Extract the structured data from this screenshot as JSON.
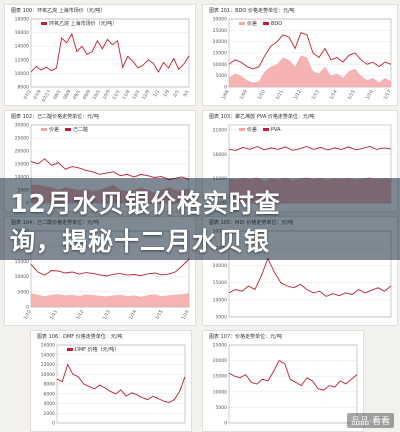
{
  "banner": {
    "line1": "12月水贝银价格实时查",
    "line2": "询，揭秘十二月水贝银"
  },
  "watermark": "品品·看看",
  "chart_data": [
    {
      "type": "line",
      "caption": "图表 100：环氧乙烷 上海市场价（元/吨）",
      "legend": [
        "环氧乙烷 上海市场价（元/吨）"
      ],
      "series": [
        {
          "name": "环氧乙烷 上海市场价（元/吨）",
          "color": "#c21f2d",
          "values": [
            10200,
            11000,
            10500,
            10900,
            10400,
            10800,
            15200,
            14500,
            15800,
            13200,
            14000,
            12800,
            13200,
            14800,
            13600,
            15000,
            14200,
            14800,
            10900,
            12500,
            11800,
            10800,
            11200,
            12000,
            11500,
            10200,
            11600,
            10800,
            12200,
            10600,
            11400,
            12600
          ]
        }
      ],
      "ylim": [
        8000,
        18000
      ],
      "yticks": [
        8000,
        10000,
        12000,
        14000,
        16000,
        18000
      ],
      "xticks": [
        "07/1",
        "07/9",
        "07/17",
        "08/1",
        "08/9",
        "09/1",
        "09/9",
        "10/1",
        "10/9",
        "11/1",
        "11/9",
        "12/1",
        "12/9",
        "1/1",
        "1/9",
        "2/1",
        "3/1"
      ]
    },
    {
      "type": "area",
      "caption": "图表 101：BDO 价格走势单位：元/吨",
      "legend": [
        "价差",
        "BDO"
      ],
      "series": [
        {
          "name": "价差",
          "color": "#f3a6a6",
          "fill": true,
          "values": [
            4000,
            6000,
            5000,
            3000,
            2000,
            2500,
            7000,
            9000,
            10000,
            13000,
            12000,
            9000,
            14000,
            13000,
            7000,
            6000,
            9000,
            5000,
            6000,
            4000,
            7000,
            8000,
            5000,
            3000,
            4000,
            2000,
            4000,
            2500
          ]
        },
        {
          "name": "BDO",
          "color": "#c21f2d",
          "values": [
            10000,
            12000,
            11000,
            9000,
            8000,
            9000,
            14000,
            18000,
            20000,
            23000,
            22000,
            17000,
            24000,
            23000,
            15000,
            13000,
            17000,
            12000,
            13000,
            11000,
            14000,
            15000,
            12000,
            10000,
            11000,
            9000,
            11000,
            10000
          ]
        }
      ],
      "ylim": [
        0,
        30000
      ],
      "yticks": [
        0,
        5000,
        10000,
        15000,
        20000,
        25000,
        30000
      ],
      "xticks": [
        "1/08",
        "1/09",
        "1/10",
        "1/11",
        "1/12",
        "1/13",
        "1/14",
        "1/15",
        "1/16",
        "1/17"
      ]
    },
    {
      "type": "area",
      "caption": "图表 102：己二酸价格走势单位：元/吨",
      "legend": [
        "价差",
        "己二酸"
      ],
      "series": [
        {
          "name": "价差",
          "color": "#f3a6a6",
          "fill": true,
          "values": [
            7000,
            7000,
            6500,
            6000,
            5000,
            6000,
            5500,
            5000,
            5500,
            4500,
            5000,
            6000,
            7000,
            5000,
            4500,
            5000,
            6000,
            5000,
            4000,
            5000,
            6000,
            5000,
            4500,
            6000
          ]
        },
        {
          "name": "己二酸",
          "color": "#c21f2d",
          "values": [
            16000,
            15000,
            17000,
            14500,
            15500,
            13000,
            14000,
            13500,
            12500,
            12000,
            11000,
            11500,
            12000,
            10500,
            11000,
            10000,
            11000,
            10500,
            9800,
            10200,
            9000,
            9500,
            10000,
            9000
          ]
        }
      ],
      "ylim": [
        0,
        30000
      ],
      "yticks": [
        0,
        5000,
        10000,
        15000,
        20000,
        25000,
        30000
      ],
      "xticks": []
    },
    {
      "type": "area",
      "caption": "图表 103：聚乙烯醇 PVA 价格走势单位：元/吨",
      "legend": [
        "价差",
        "PVA"
      ],
      "series": [
        {
          "name": "价差",
          "color": "#f3a6a6",
          "fill": true,
          "values": [
            11000,
            10800,
            11200,
            10900,
            11300,
            10600,
            11100,
            10800,
            11200,
            10700,
            11000,
            11300,
            10900,
            11200,
            10800,
            11100,
            10900,
            11200,
            10800,
            11000,
            11300,
            10900,
            11100,
            11000
          ]
        },
        {
          "name": "PVA",
          "color": "#c21f2d",
          "values": [
            17000,
            16800,
            17400,
            17000,
            17600,
            16900,
            17300,
            17000,
            17500,
            16800,
            17100,
            17600,
            17000,
            17400,
            16900,
            17300,
            17000,
            17500,
            16900,
            17200,
            17600,
            17000,
            17300,
            17100
          ]
        }
      ],
      "ylim": [
        6000,
        22000
      ],
      "yticks": [
        6000,
        11000,
        16000,
        21000
      ],
      "xticks": []
    },
    {
      "type": "area",
      "caption": "图表 104：己二酸价格走势单位：元/吨",
      "legend": [],
      "series": [
        {
          "name": "",
          "color": "#f3a6a6",
          "fill": true,
          "values": [
            4500,
            4000,
            3500,
            4000,
            4200,
            3800,
            4000,
            3600,
            4100,
            3900,
            3700,
            3500,
            3800,
            4000,
            3600,
            3800,
            3400,
            3900,
            4200,
            3600,
            3800,
            4000,
            4200,
            4600
          ]
        },
        {
          "name": "",
          "color": "#c21f2d",
          "values": [
            14000,
            11500,
            10500,
            12000,
            11800,
            11200,
            11500,
            10800,
            11300,
            11000,
            10600,
            10200,
            10800,
            11000,
            10500,
            10700,
            10300,
            10900,
            11200,
            10600,
            10800,
            11500,
            13500,
            15800
          ]
        }
      ],
      "ylim": [
        0,
        25000
      ],
      "yticks": [
        0,
        5000,
        10000,
        15000,
        20000,
        25000
      ],
      "xticks": [
        "1/10",
        "1/11",
        "1/12",
        "1/13",
        "1/14",
        "1/15",
        "1/16"
      ]
    },
    {
      "type": "line",
      "caption": "图表 105：MDI 价格走势单位：元/吨",
      "legend": [],
      "series": [
        {
          "name": "",
          "color": "#c21f2d",
          "values": [
            12000,
            13000,
            12500,
            14000,
            13000,
            17000,
            22000,
            18000,
            15000,
            14000,
            13500,
            14500,
            13000,
            12000,
            12500,
            11000,
            11800,
            11200,
            12000,
            11500,
            13000,
            12000,
            12800,
            13500,
            12500,
            14000
          ]
        }
      ],
      "ylim": [
        5000,
        30000
      ],
      "yticks": [
        5000,
        10000,
        15000,
        20000,
        25000,
        30000
      ],
      "xticks": []
    },
    {
      "type": "line",
      "caption": "图表 106：DMF 价格走势单位：元/吨",
      "legend": [
        "DMF 价格（元/吨）"
      ],
      "series": [
        {
          "name": "DMF 价格（元/吨）",
          "color": "#c21f2d",
          "values": [
            9000,
            8500,
            12000,
            10000,
            9500,
            8000,
            7500,
            7000,
            7800,
            7200,
            6500,
            6000,
            6800,
            5500,
            6200,
            5800,
            5200,
            4800,
            5500,
            5000,
            4500,
            4200,
            4800,
            6500,
            9500
          ]
        }
      ],
      "ylim": [
        0,
        16000
      ],
      "yticks": [
        0,
        2000,
        4000,
        6000,
        8000,
        10000,
        12000,
        14000,
        16000
      ],
      "xticks": []
    },
    {
      "type": "line",
      "caption": "图表 107：价格走势单位：元/吨",
      "legend": [],
      "series": [
        {
          "name": "",
          "color": "#c21f2d",
          "values": [
            16000,
            15000,
            14500,
            15500,
            13000,
            12500,
            14000,
            13500,
            16500,
            20000,
            19000,
            14000,
            13000,
            12000,
            14500,
            13500,
            11000,
            10500,
            12000,
            11500,
            13500,
            12500,
            14000,
            15500
          ]
        }
      ],
      "ylim": [
        0,
        25000
      ],
      "yticks": [
        0,
        5000,
        10000,
        15000,
        20000,
        25000
      ],
      "xticks": []
    }
  ]
}
